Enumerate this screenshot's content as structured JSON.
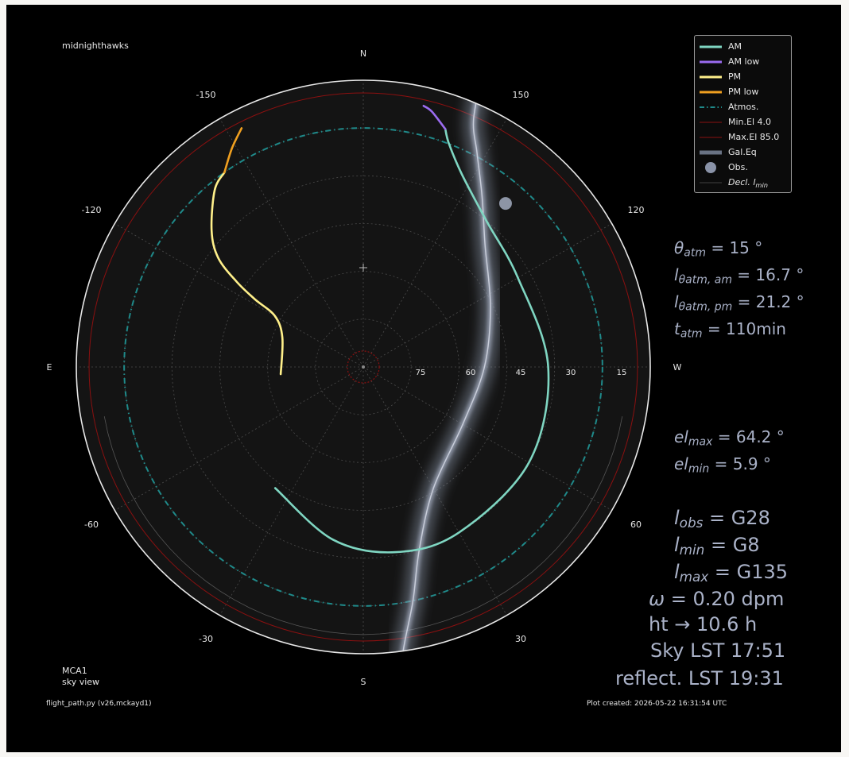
{
  "header": {
    "station": "midnighthawks"
  },
  "footer": {
    "map_name": "MCA1",
    "map_view": "sky view",
    "script": "flight_path.py (v26,mckayd1)",
    "created": "Plot created: 2026-05-22 16:31:54 UTC"
  },
  "chart_data": {
    "type": "polar-skymap",
    "radial_axis": {
      "quantity": "elevation",
      "center_deg": 90,
      "edge_deg": 0,
      "tick_labels": [
        "75",
        "60",
        "45",
        "30",
        "15"
      ]
    },
    "cardinal_labels": {
      "N": "N",
      "E": "E",
      "S": "S",
      "W": "W"
    },
    "angle_tick_labels": [
      "-150",
      "150",
      "-120",
      "120",
      "-60",
      "60",
      "-30",
      "30"
    ],
    "series": [
      {
        "name": "AM",
        "color": "#7fd6c2",
        "points": [
          [
            144,
            43
          ],
          [
            170,
            35
          ],
          [
            190,
            31
          ],
          [
            210,
            30
          ],
          [
            240,
            30
          ],
          [
            270,
            32
          ],
          [
            300,
            34
          ],
          [
            320,
            30
          ],
          [
            333,
            22
          ],
          [
            339,
            15
          ],
          [
            341,
            11
          ]
        ]
      },
      {
        "name": "AM low",
        "color": "#9b6cf0",
        "points": [
          [
            341,
            11
          ],
          [
            345,
            7
          ],
          [
            347,
            5.9
          ]
        ]
      },
      {
        "name": "PM",
        "color": "#fff08a",
        "points": [
          [
            95,
            64
          ],
          [
            70,
            63
          ],
          [
            60,
            58
          ],
          [
            58,
            50
          ],
          [
            56,
            42
          ],
          [
            53,
            33
          ],
          [
            48,
            26
          ],
          [
            40,
            17.5
          ],
          [
            35.5,
            15
          ]
        ]
      },
      {
        "name": "PM low",
        "color": "#f0a020",
        "points": [
          [
            35.5,
            15
          ],
          [
            31,
            10
          ],
          [
            27,
            5.9
          ]
        ]
      }
    ],
    "galactic_plane": {
      "name": "Gal.Eq",
      "points": [
        [
          -174,
          -15
        ],
        [
          -172,
          0
        ],
        [
          -168,
          15
        ],
        [
          -163,
          30
        ],
        [
          -150,
          46
        ],
        [
          -120,
          54
        ],
        [
          -90,
          52
        ],
        [
          -65,
          46
        ],
        [
          -45,
          36
        ],
        [
          -35,
          25
        ],
        [
          -28,
          14
        ],
        [
          -24,
          5
        ],
        [
          -22,
          -10
        ]
      ]
    },
    "observer": {
      "name": "Obs.",
      "position": [
        -41,
        22
      ]
    },
    "atmosphere": {
      "name": "Atmos.",
      "elevation": 15,
      "color": "#1f8a8a"
    },
    "min_elevation": {
      "name": "Min.El 4.0",
      "elevation": 4.0,
      "color": "#8b1010"
    },
    "max_elevation": {
      "name": "Max.El 85.0",
      "elevation": 85.0,
      "color": "#8b1010"
    },
    "declination_limit": {
      "name_prefix": "Decl. ",
      "name_var": "l",
      "name_sub": "min",
      "elevation": 6.0
    },
    "legend": {
      "position": "top-right"
    },
    "grid": true
  },
  "stats": {
    "theta_atm": {
      "name": "θ",
      "sub": "atm",
      "value": " = 15 °"
    },
    "l_atm_am": {
      "name": "l",
      "sub": "θatm, am",
      "value": " = 16.7 °"
    },
    "l_atm_pm": {
      "name": "l",
      "sub": "θatm, pm",
      "value": " = 21.2 °"
    },
    "t_atm": {
      "name": "t",
      "sub": "atm",
      "value": " = 110min"
    },
    "el_max": {
      "name": "el",
      "sub": "max",
      "value": " = 64.2 °"
    },
    "el_min": {
      "name": "el",
      "sub": "min",
      "value": " = 5.9 °"
    },
    "l_obs": {
      "name": "l",
      "sub": "obs",
      "value": " = G28"
    },
    "l_min": {
      "name": "l",
      "sub": "min",
      "value": " = G8"
    },
    "l_max": {
      "name": "l",
      "sub": "max",
      "value": " = G135"
    },
    "omega": {
      "name": "ω",
      "value": " = 0.20 dpm"
    },
    "ht": {
      "text": "ht → 10.6 h"
    },
    "sky_lst": {
      "text": "Sky LST 17:51"
    },
    "reflect_lst": {
      "text": "reflect. LST 19:31"
    }
  }
}
